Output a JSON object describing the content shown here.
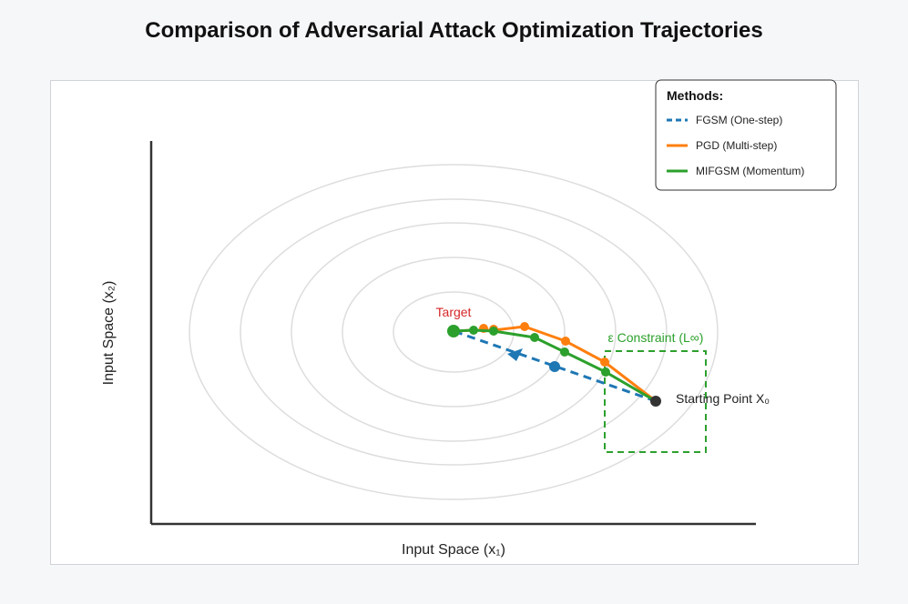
{
  "title": "Comparison of Adversarial Attack Optimization Trajectories",
  "axes": {
    "xlabel": "Input Space (x₁)",
    "ylabel": "Input Space (x₂)"
  },
  "annotations": {
    "target": "Target",
    "start": "Starting Point X₀",
    "constraint": "ε Constraint (L∞)"
  },
  "legend": {
    "title": "Methods:",
    "items": [
      {
        "label": "FGSM (One-step)",
        "color": "#1f77b4",
        "style": "dashed"
      },
      {
        "label": "PGD (Multi-step)",
        "color": "#ff7f0e",
        "style": "solid"
      },
      {
        "label": "MIFGSM (Momentum)",
        "color": "#2ca02c",
        "style": "solid"
      }
    ]
  },
  "colors": {
    "fgsm": "#1f77b4",
    "pgd": "#ff7f0e",
    "mifgsm": "#2ca02c",
    "target_text": "#d62728",
    "contour": "#dddddd",
    "axis": "#333333",
    "start_point": "#333333"
  }
}
